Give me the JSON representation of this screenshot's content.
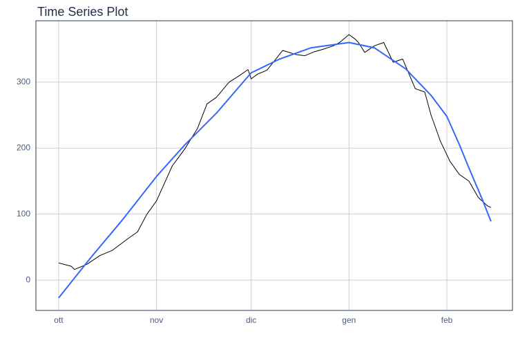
{
  "chart_data": {
    "type": "line",
    "title": "Time Series Plot",
    "xlim": [
      -7.2,
      143.8
    ],
    "ylim": [
      -46,
      393
    ],
    "xticks": [
      {
        "value": 0,
        "label": "ott"
      },
      {
        "value": 31,
        "label": "nov"
      },
      {
        "value": 61,
        "label": "dic"
      },
      {
        "value": 92,
        "label": "gen"
      },
      {
        "value": 123,
        "label": "feb"
      }
    ],
    "yticks": [
      0,
      100,
      200,
      300
    ],
    "grid": true,
    "series": [
      {
        "color": "#000000",
        "width": 1,
        "x": [
          0,
          4,
          5,
          9,
          13,
          17,
          22,
          25,
          28,
          31,
          36,
          40,
          44,
          47,
          50,
          54,
          57,
          60,
          61,
          63,
          66,
          71,
          75,
          78,
          81,
          84,
          87,
          89,
          91,
          92,
          94,
          95,
          97,
          100,
          103,
          106,
          109,
          113,
          116,
          118,
          121,
          124,
          127,
          130,
          133,
          136,
          137
        ],
        "values": [
          26,
          21,
          16,
          24,
          37,
          45,
          63,
          73,
          100,
          120,
          173,
          199,
          230,
          267,
          277,
          300,
          309,
          319,
          305,
          312,
          318,
          348,
          342,
          340,
          346,
          350,
          355,
          360,
          368,
          372,
          365,
          360,
          345,
          355,
          360,
          330,
          335,
          290,
          285,
          250,
          210,
          180,
          160,
          150,
          125,
          112,
          110
        ]
      },
      {
        "color": "#3366ff",
        "width": 2,
        "x": [
          0,
          10,
          20,
          31,
          40,
          50,
          61,
          70,
          80,
          92,
          100,
          110,
          118,
          123,
          127,
          130,
          134,
          137
        ],
        "values": [
          -27,
          33,
          90,
          157,
          205,
          253,
          314,
          335,
          352,
          360,
          352,
          320,
          280,
          248,
          205,
          170,
          125,
          89
        ]
      }
    ]
  }
}
